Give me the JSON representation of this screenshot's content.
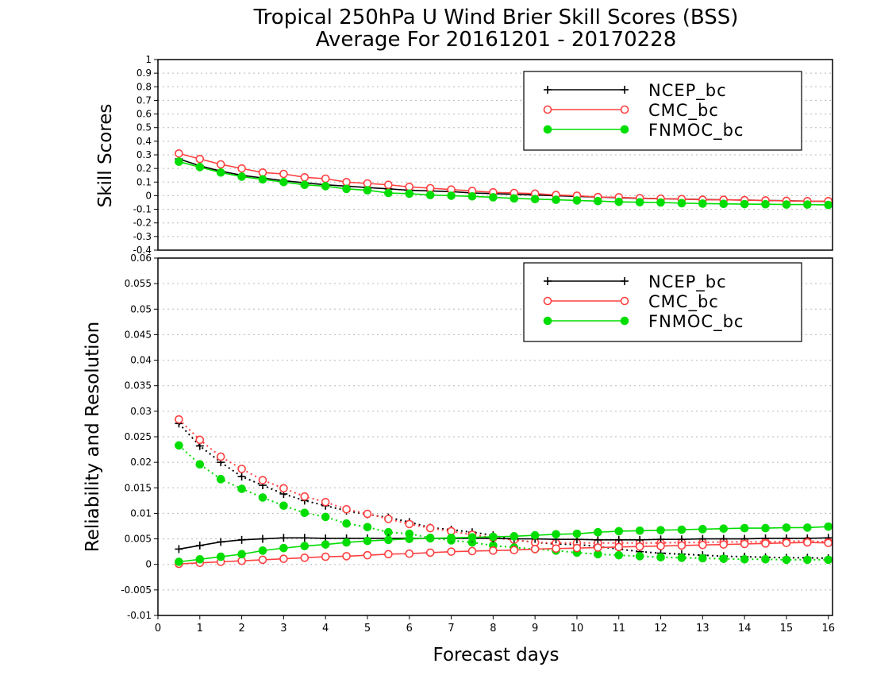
{
  "chart_data": [
    {
      "type": "line",
      "title": "Tropical 250hPa U Wind Brier Skill Scores (BSS)",
      "subtitle": "Average For 20161201 - 20170228",
      "xlabel": "",
      "ylabel": "Skill Scores",
      "xlim": [
        0,
        16.1
      ],
      "ylim": [
        -0.4,
        1
      ],
      "grid": true,
      "legend_position": "top-right",
      "yticks": [
        "-0.4",
        "-0.3",
        "-0.2",
        "-0.1",
        "0",
        "0.1",
        "0.2",
        "0.3",
        "0.4",
        "0.5",
        "0.6",
        "0.7",
        "0.8",
        "0.9",
        "1"
      ],
      "ytick_values": [
        -0.4,
        -0.3,
        -0.2,
        -0.1,
        0,
        0.1,
        0.2,
        0.3,
        0.4,
        0.5,
        0.6,
        0.7,
        0.8,
        0.9,
        1
      ],
      "x": [
        0.5,
        1,
        1.5,
        2,
        2.5,
        3,
        3.5,
        4,
        4.5,
        5,
        5.5,
        6,
        6.5,
        7,
        7.5,
        8,
        8.5,
        9,
        9.5,
        10,
        10.5,
        11,
        11.5,
        12,
        12.5,
        13,
        13.5,
        14,
        14.5,
        15,
        15.5,
        16
      ],
      "series": [
        {
          "name": "NCEP_bc",
          "color": "#000000",
          "marker": "plus",
          "line": "solid",
          "values": [
            0.27,
            0.22,
            0.18,
            0.15,
            0.13,
            0.11,
            0.095,
            0.08,
            0.07,
            0.06,
            0.05,
            0.04,
            0.035,
            0.03,
            0.02,
            0.015,
            0.01,
            0.005,
            0.0,
            -0.005,
            -0.01,
            -0.015,
            -0.02,
            -0.022,
            -0.025,
            -0.028,
            -0.03,
            -0.032,
            -0.035,
            -0.037,
            -0.04,
            -0.042
          ]
        },
        {
          "name": "CMC_bc",
          "color": "#ff4040",
          "marker": "circle",
          "line": "solid",
          "values": [
            0.31,
            0.27,
            0.23,
            0.2,
            0.17,
            0.16,
            0.135,
            0.125,
            0.1,
            0.09,
            0.08,
            0.065,
            0.055,
            0.045,
            0.035,
            0.025,
            0.02,
            0.015,
            0.005,
            0.0,
            -0.01,
            -0.012,
            -0.018,
            -0.022,
            -0.025,
            -0.03,
            -0.03,
            -0.033,
            -0.035,
            -0.038,
            -0.04,
            -0.04
          ]
        },
        {
          "name": "FNMOC_bc",
          "color": "#00dd00",
          "marker": "dot",
          "line": "solid",
          "values": [
            0.25,
            0.21,
            0.17,
            0.14,
            0.12,
            0.1,
            0.08,
            0.07,
            0.05,
            0.04,
            0.02,
            0.015,
            0.005,
            0.0,
            -0.005,
            -0.012,
            -0.02,
            -0.025,
            -0.03,
            -0.035,
            -0.04,
            -0.045,
            -0.048,
            -0.05,
            -0.055,
            -0.058,
            -0.06,
            -0.062,
            -0.063,
            -0.065,
            -0.065,
            -0.068
          ]
        }
      ]
    },
    {
      "type": "line",
      "title": "",
      "xlabel": "Forecast days",
      "ylabel": "Reliability and Resolution",
      "xlim": [
        0,
        16.1
      ],
      "ylim": [
        -0.01,
        0.06
      ],
      "grid": true,
      "legend_position": "top-right",
      "xticks": [
        "0",
        "1",
        "2",
        "3",
        "4",
        "5",
        "6",
        "7",
        "8",
        "9",
        "10",
        "11",
        "12",
        "13",
        "14",
        "15",
        "16"
      ],
      "xtick_values": [
        0,
        1,
        2,
        3,
        4,
        5,
        6,
        7,
        8,
        9,
        10,
        11,
        12,
        13,
        14,
        15,
        16
      ],
      "yticks": [
        "-0.01",
        "-0.005",
        "0",
        "0.005",
        "0.01",
        "0.015",
        "0.02",
        "0.025",
        "0.03",
        "0.035",
        "0.04",
        "0.045",
        "0.05",
        "0.055",
        "0.06"
      ],
      "ytick_values": [
        -0.01,
        -0.005,
        0,
        0.005,
        0.01,
        0.015,
        0.02,
        0.025,
        0.03,
        0.035,
        0.04,
        0.045,
        0.05,
        0.055,
        0.06
      ],
      "x": [
        0.5,
        1,
        1.5,
        2,
        2.5,
        3,
        3.5,
        4,
        4.5,
        5,
        5.5,
        6,
        6.5,
        7,
        7.5,
        8,
        8.5,
        9,
        9.5,
        10,
        10.5,
        11,
        11.5,
        12,
        12.5,
        13,
        13.5,
        14,
        14.5,
        15,
        15.5,
        16
      ],
      "legend": [
        {
          "name": "NCEP_bc",
          "color": "#000000",
          "marker": "plus"
        },
        {
          "name": "CMC_bc",
          "color": "#ff4040",
          "marker": "circle"
        },
        {
          "name": "FNMOC_bc",
          "color": "#00dd00",
          "marker": "dot"
        }
      ],
      "series": [
        {
          "name": "NCEP_bc",
          "color": "#000000",
          "marker": "plus",
          "line": "dotted",
          "values": [
            0.0276,
            0.0232,
            0.02,
            0.0172,
            0.0155,
            0.0138,
            0.0125,
            0.0115,
            0.0105,
            0.0098,
            0.0092,
            0.0083,
            0.0072,
            0.0068,
            0.0063,
            0.0057,
            0.0048,
            0.0043,
            0.004,
            0.0039,
            0.0035,
            0.003,
            0.0025,
            0.0022,
            0.002,
            0.0018,
            0.0016,
            0.0015,
            0.0014,
            0.0013,
            0.0013,
            0.0012
          ]
        },
        {
          "name": "CMC_bc",
          "color": "#ff4040",
          "marker": "circle",
          "line": "dotted",
          "values": [
            0.0284,
            0.0244,
            0.0211,
            0.0187,
            0.0165,
            0.0149,
            0.0133,
            0.0122,
            0.0108,
            0.0099,
            0.0089,
            0.0079,
            0.0071,
            0.0065,
            0.0058,
            0.0052,
            0.0048,
            0.0043,
            0.0042,
            0.0042,
            0.0042,
            0.0042,
            0.0042,
            0.0042,
            0.0043,
            0.0043,
            0.0044,
            0.0044,
            0.0044,
            0.0045,
            0.0046,
            0.0044
          ]
        },
        {
          "name": "FNMOC_bc",
          "color": "#00dd00",
          "marker": "dot",
          "line": "dotted",
          "values": [
            0.0233,
            0.0196,
            0.0167,
            0.0148,
            0.0131,
            0.0115,
            0.0101,
            0.0093,
            0.008,
            0.0073,
            0.0063,
            0.006,
            0.0052,
            0.0047,
            0.0043,
            0.0037,
            0.0033,
            0.003,
            0.0027,
            0.0023,
            0.002,
            0.0018,
            0.0016,
            0.0014,
            0.0013,
            0.0012,
            0.0011,
            0.001,
            0.001,
            0.0009,
            0.0009,
            0.0009
          ]
        },
        {
          "name": "NCEP_bc",
          "color": "#000000",
          "marker": "plus",
          "line": "solid",
          "values": [
            0.003,
            0.0037,
            0.0044,
            0.0048,
            0.005,
            0.0052,
            0.0052,
            0.0051,
            0.0051,
            0.0051,
            0.0051,
            0.0051,
            0.0051,
            0.0051,
            0.0051,
            0.0051,
            0.005,
            0.005,
            0.0049,
            0.0049,
            0.0048,
            0.0048,
            0.0048,
            0.0049,
            0.0049,
            0.005,
            0.005,
            0.005,
            0.0051,
            0.0051,
            0.0051,
            0.0052
          ]
        },
        {
          "name": "CMC_bc",
          "color": "#ff4040",
          "marker": "circle",
          "line": "solid",
          "values": [
            0.0001,
            0.0003,
            0.0005,
            0.0007,
            0.0009,
            0.0011,
            0.0013,
            0.0015,
            0.0016,
            0.0018,
            0.002,
            0.0021,
            0.0023,
            0.0025,
            0.0026,
            0.0027,
            0.0028,
            0.003,
            0.0031,
            0.0032,
            0.0033,
            0.0034,
            0.0035,
            0.0036,
            0.0037,
            0.0038,
            0.0039,
            0.004,
            0.0041,
            0.0042,
            0.0043,
            0.0042
          ]
        },
        {
          "name": "FNMOC_bc",
          "color": "#00dd00",
          "marker": "dot",
          "line": "solid",
          "values": [
            0.0005,
            0.001,
            0.0015,
            0.002,
            0.0027,
            0.0032,
            0.0036,
            0.0039,
            0.0043,
            0.0046,
            0.0048,
            0.005,
            0.0051,
            0.0052,
            0.0053,
            0.0054,
            0.0055,
            0.0057,
            0.0059,
            0.006,
            0.0063,
            0.0065,
            0.0066,
            0.0067,
            0.0068,
            0.0069,
            0.007,
            0.0071,
            0.0071,
            0.0072,
            0.0072,
            0.0074
          ]
        }
      ]
    }
  ]
}
